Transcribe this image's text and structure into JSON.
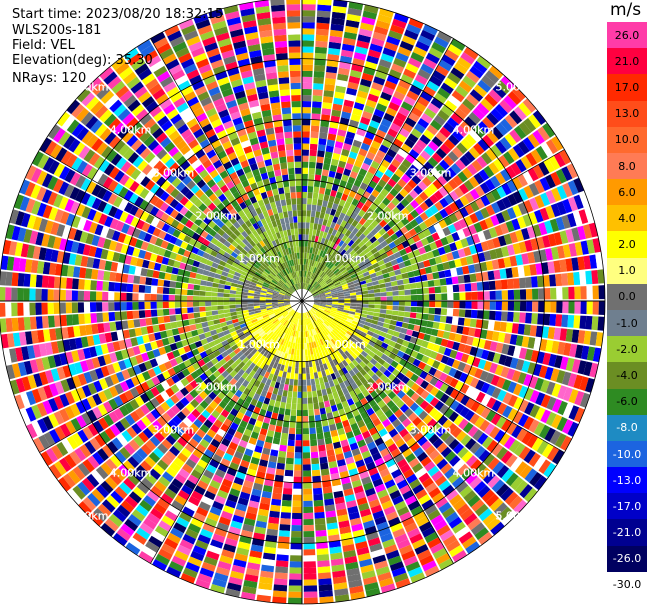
{
  "info": {
    "start_time": "Start time: 2023/08/20 18:32:15",
    "instrument": "WLS200s-181",
    "field": "Field: VEL",
    "elevation": "Elevation(deg): 35.30",
    "nrays": "NRays: 120"
  },
  "colorbar": {
    "unit": "m/s",
    "levels": [
      {
        "label": "26.0",
        "color": "#ff3ca8"
      },
      {
        "label": "21.0",
        "color": "#ff0040"
      },
      {
        "label": "17.0",
        "color": "#ff2a00"
      },
      {
        "label": "13.0",
        "color": "#ff4d1a"
      },
      {
        "label": "10.0",
        "color": "#ff6a2e"
      },
      {
        "label": "8.0",
        "color": "#ff7b55"
      },
      {
        "label": "6.0",
        "color": "#ff9a00"
      },
      {
        "label": "4.0",
        "color": "#ffc000"
      },
      {
        "label": "2.0",
        "color": "#ffff00"
      },
      {
        "label": "1.0",
        "color": "#ffff80"
      },
      {
        "label": "0.0",
        "color": "#707070"
      },
      {
        "label": "-1.0",
        "color": "#6f7f8f"
      },
      {
        "label": "-2.0",
        "color": "#9acd32"
      },
      {
        "label": "-4.0",
        "color": "#6b8e23"
      },
      {
        "label": "-6.0",
        "color": "#2e8b22"
      },
      {
        "label": "-8.0",
        "color": "#1e8bc3"
      },
      {
        "label": "-10.0",
        "color": "#1c64e0"
      },
      {
        "label": "-13.0",
        "color": "#0000ff"
      },
      {
        "label": "-17.0",
        "color": "#0000c8"
      },
      {
        "label": "-21.0",
        "color": "#000090"
      },
      {
        "label": "-26.0",
        "color": "#000060"
      },
      {
        "label": "-30.0",
        "color": "#ffffff"
      }
    ]
  },
  "chart_data": {
    "type": "heatmap",
    "projection": "polar PPI",
    "field": "VEL",
    "n_rays": 120,
    "range_rings_km": [
      1.0,
      2.0,
      3.0,
      4.0,
      5.0
    ],
    "range_ring_labels": [
      "1.00km",
      "2.00km",
      "3.00km",
      "4.00km",
      "5.00km"
    ],
    "max_range_km": 5.0,
    "colorbar_range": [
      -30.0,
      26.0
    ],
    "regions": [
      {
        "name": "near-field positive",
        "approx_range_km": [
          0.0,
          0.9
        ],
        "direction": "south",
        "approx_velocity_ms": 2.0
      },
      {
        "name": "near-field negative",
        "approx_range_km": [
          0.5,
          1.8
        ],
        "direction": "north",
        "approx_velocity_ms": -2.0
      },
      {
        "name": "far-field noise",
        "approx_range_km": [
          2.0,
          5.0
        ],
        "direction": "all",
        "approx_velocity_ms": null
      }
    ]
  }
}
